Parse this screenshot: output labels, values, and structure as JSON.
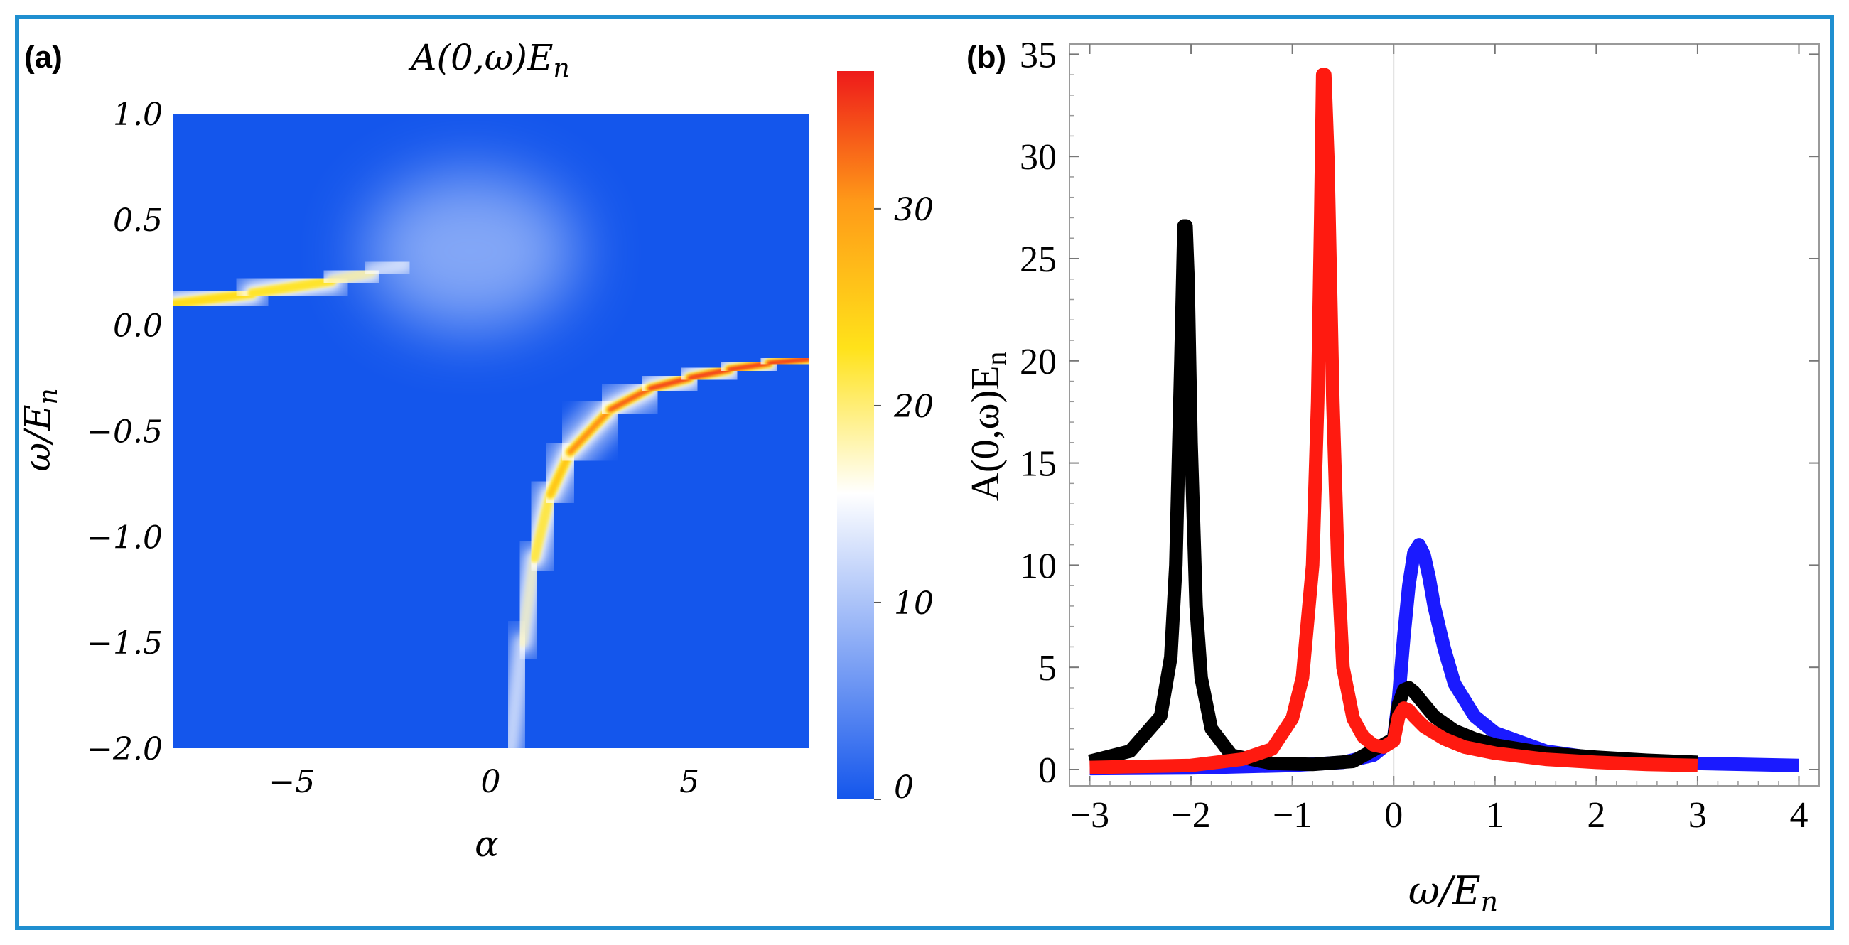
{
  "colors": {
    "frame": "#1f8fd0",
    "heatmap_base": "#1456ec",
    "black_series": "#000000",
    "red_series": "#ff1a10",
    "blue_series": "#1a1aff"
  },
  "chart_data": [
    {
      "type": "heatmap",
      "panel_label": "(a)",
      "title": "A(0,ω)E",
      "title_sub": "n",
      "xlabel": "α",
      "ylabel": "ω/E",
      "ylabel_sub": "n",
      "xlim": [
        -8,
        8
      ],
      "ylim": [
        -2.0,
        1.0
      ],
      "xticks": [
        {
          "value": -5,
          "label": "−5"
        },
        {
          "value": 0,
          "label": "0"
        },
        {
          "value": 5,
          "label": "5"
        }
      ],
      "yticks": [
        {
          "value": 1.0,
          "label": "1.0"
        },
        {
          "value": 0.5,
          "label": "0.5"
        },
        {
          "value": 0.0,
          "label": "0.0"
        },
        {
          "value": -0.5,
          "label": "−0.5"
        },
        {
          "value": -1.0,
          "label": "−1.0"
        },
        {
          "value": -1.5,
          "label": "−1.5"
        },
        {
          "value": -2.0,
          "label": "−2.0"
        }
      ],
      "colorbar": {
        "range": [
          0,
          37
        ],
        "ticks": [
          {
            "value": 0,
            "label": "0"
          },
          {
            "value": 10,
            "label": "10"
          },
          {
            "value": 20,
            "label": "20"
          },
          {
            "value": 30,
            "label": "30"
          }
        ],
        "colors": [
          "#1456ec",
          "#ffffff",
          "#ffe21a",
          "#ff9a18",
          "#ee1a1a"
        ]
      },
      "bands": [
        {
          "name": "upper-branch",
          "points": [
            [
              -8,
              0.1
            ],
            [
              -6,
              0.15
            ],
            [
              -4,
              0.21
            ],
            [
              -3,
              0.25
            ],
            [
              -2.2,
              0.29
            ]
          ],
          "peak_values": [
            26,
            25,
            22,
            16,
            9
          ]
        },
        {
          "name": "lower-branch",
          "points": [
            [
              0.5,
              -2.0
            ],
            [
              0.8,
              -1.5
            ],
            [
              1.1,
              -1.1
            ],
            [
              1.5,
              -0.8
            ],
            [
              2.0,
              -0.6
            ],
            [
              3.0,
              -0.4
            ],
            [
              4.0,
              -0.3
            ],
            [
              5.0,
              -0.25
            ],
            [
              6.0,
              -0.21
            ],
            [
              7.0,
              -0.18
            ],
            [
              8.0,
              -0.16
            ]
          ],
          "peak_values": [
            12,
            16,
            20,
            25,
            29,
            32,
            34,
            35,
            36,
            37,
            37
          ]
        }
      ]
    },
    {
      "type": "line",
      "panel_label": "(b)",
      "xlabel": "ω/E",
      "xlabel_sub": "n",
      "ylabel": "A(0,ω)E",
      "ylabel_sub": "n",
      "xlim": [
        -3.2,
        4.2
      ],
      "ylim": [
        -0.8,
        35.5
      ],
      "xticks": [
        {
          "value": -3,
          "label": "−3"
        },
        {
          "value": -2,
          "label": "−2"
        },
        {
          "value": -1,
          "label": "−1"
        },
        {
          "value": 0,
          "label": "0"
        },
        {
          "value": 1,
          "label": "1"
        },
        {
          "value": 2,
          "label": "2"
        },
        {
          "value": 3,
          "label": "3"
        },
        {
          "value": 4,
          "label": "4"
        }
      ],
      "yticks": [
        {
          "value": 0,
          "label": "0"
        },
        {
          "value": 5,
          "label": "5"
        },
        {
          "value": 10,
          "label": "10"
        },
        {
          "value": 15,
          "label": "15"
        },
        {
          "value": 20,
          "label": "20"
        },
        {
          "value": 25,
          "label": "25"
        },
        {
          "value": 30,
          "label": "30"
        },
        {
          "value": 35,
          "label": "35"
        }
      ],
      "series": [
        {
          "name": "blue",
          "color": "#1a1aff",
          "x": [
            -3.0,
            -2.0,
            -1.0,
            -0.5,
            -0.2,
            0.0,
            0.05,
            0.1,
            0.15,
            0.2,
            0.25,
            0.3,
            0.35,
            0.4,
            0.5,
            0.6,
            0.8,
            1.0,
            1.5,
            2.0,
            3.0,
            4.0
          ],
          "y": [
            0.05,
            0.08,
            0.2,
            0.35,
            0.7,
            1.5,
            3.5,
            6.5,
            9.0,
            10.6,
            11.0,
            10.5,
            9.4,
            8.0,
            5.9,
            4.2,
            2.6,
            1.8,
            0.9,
            0.55,
            0.3,
            0.2
          ]
        },
        {
          "name": "black",
          "color": "#000000",
          "x": [
            -3.0,
            -2.6,
            -2.3,
            -2.2,
            -2.15,
            -2.1,
            -2.07,
            -2.05,
            -2.03,
            -2.0,
            -1.95,
            -1.9,
            -1.8,
            -1.6,
            -1.2,
            -0.8,
            -0.4,
            0.0,
            0.05,
            0.1,
            0.15,
            0.2,
            0.3,
            0.4,
            0.6,
            0.8,
            1.0,
            1.5,
            2.0,
            2.5,
            3.0
          ],
          "y": [
            0.4,
            0.9,
            2.6,
            5.5,
            10.0,
            20.0,
            26.6,
            26.6,
            24.0,
            16.0,
            8.0,
            4.5,
            2.0,
            0.7,
            0.3,
            0.25,
            0.4,
            1.5,
            3.2,
            3.9,
            4.0,
            3.8,
            3.2,
            2.6,
            1.9,
            1.5,
            1.2,
            0.8,
            0.6,
            0.45,
            0.35
          ]
        },
        {
          "name": "red",
          "color": "#ff1a10",
          "x": [
            -3.0,
            -2.0,
            -1.5,
            -1.2,
            -1.0,
            -0.9,
            -0.8,
            -0.75,
            -0.72,
            -0.7,
            -0.68,
            -0.65,
            -0.6,
            -0.55,
            -0.5,
            -0.4,
            -0.3,
            -0.2,
            -0.1,
            0.0,
            0.05,
            0.1,
            0.15,
            0.2,
            0.3,
            0.5,
            0.7,
            1.0,
            1.5,
            2.0,
            2.5,
            3.0
          ],
          "y": [
            0.1,
            0.2,
            0.5,
            1.0,
            2.5,
            4.5,
            10.0,
            18.0,
            27.0,
            34.0,
            34.0,
            30.0,
            18.0,
            10.0,
            5.0,
            2.5,
            1.6,
            1.2,
            1.1,
            1.4,
            2.6,
            3.0,
            2.9,
            2.6,
            2.1,
            1.5,
            1.1,
            0.8,
            0.5,
            0.35,
            0.25,
            0.2
          ]
        }
      ]
    }
  ]
}
